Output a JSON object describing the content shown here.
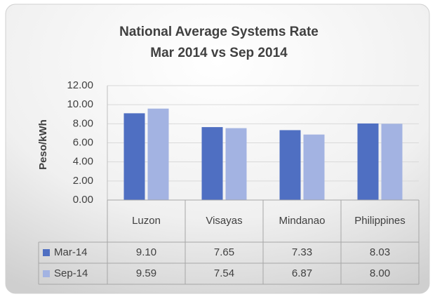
{
  "chart_data": {
    "type": "bar",
    "title": [
      "National Average Systems Rate",
      "Mar 2014 vs Sep 2014"
    ],
    "y_label": "Peso/kWh",
    "categories": [
      "Luzon",
      "Visayas",
      "Mindanao",
      "Philippines"
    ],
    "series": [
      {
        "name": "Mar-14",
        "color": "#4f6fc2",
        "values": [
          9.1,
          7.65,
          7.33,
          8.03
        ],
        "value_labels": [
          "9.10",
          "7.65",
          "7.33",
          "8.03"
        ]
      },
      {
        "name": "Sep-14",
        "color": "#a3b3e2",
        "values": [
          9.59,
          7.54,
          6.87,
          8.0
        ],
        "value_labels": [
          "9.59",
          "7.54",
          "6.87",
          "8.00"
        ]
      }
    ],
    "ylim": [
      0,
      12
    ],
    "yticks": [
      {
        "value": 0,
        "label": "0.00"
      },
      {
        "value": 2,
        "label": "2.00"
      },
      {
        "value": 4,
        "label": "4.00"
      },
      {
        "value": 6,
        "label": "6.00"
      },
      {
        "value": 8,
        "label": "8.00"
      },
      {
        "value": 10,
        "label": "10.00"
      },
      {
        "value": 12,
        "label": "12.00"
      }
    ],
    "grid": true
  }
}
